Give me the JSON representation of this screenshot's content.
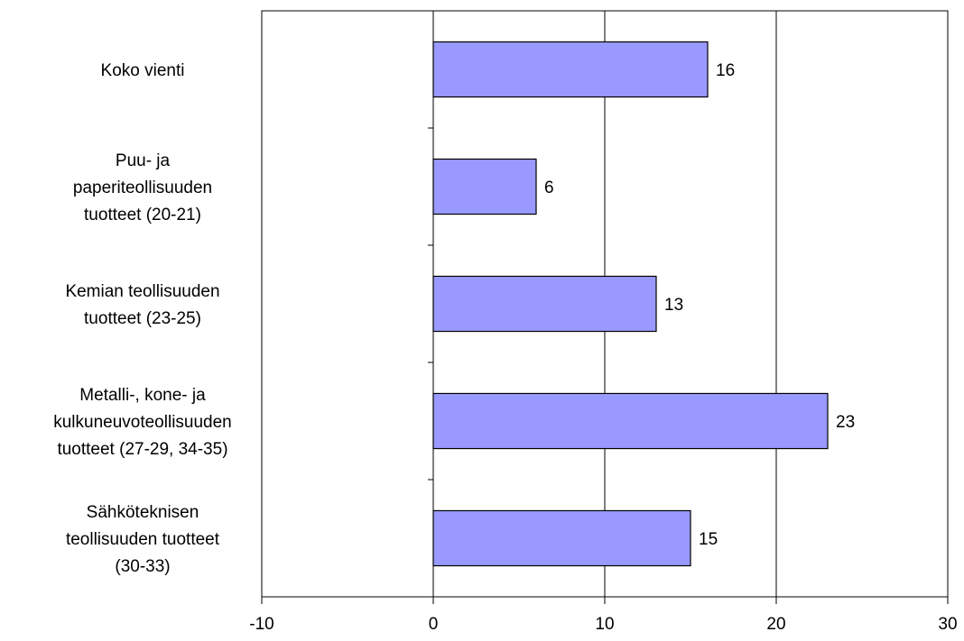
{
  "chart_data": {
    "type": "bar",
    "orientation": "horizontal",
    "title": "",
    "xlabel": "",
    "ylabel": "",
    "categories": [
      [
        "Koko vienti"
      ],
      [
        "Puu- ja",
        "paperiteollisuuden",
        "tuotteet (20-21)"
      ],
      [
        "Kemian teollisuuden",
        "tuotteet (23-25)"
      ],
      [
        "Metalli-, kone- ja",
        "kulkuneuvoteollisuuden",
        "tuotteet (27-29, 34-35)"
      ],
      [
        "Sähköteknisen",
        "teollisuuden tuotteet",
        "(30-33)"
      ]
    ],
    "values": [
      16,
      6,
      13,
      23,
      15
    ],
    "data_labels": [
      "16",
      "6",
      "13",
      "23",
      "15"
    ],
    "xlim": [
      -10,
      30
    ],
    "xticks": [
      -10,
      0,
      10,
      20,
      30
    ],
    "xtick_labels": [
      "-10",
      "0",
      "10",
      "20",
      "30"
    ],
    "grid": "vertical",
    "legend": "none",
    "colors": {
      "bar_fill": "#9999FF",
      "bar_stroke": "#000000",
      "gridline": "#000000",
      "background": "#FFFFFF"
    }
  }
}
